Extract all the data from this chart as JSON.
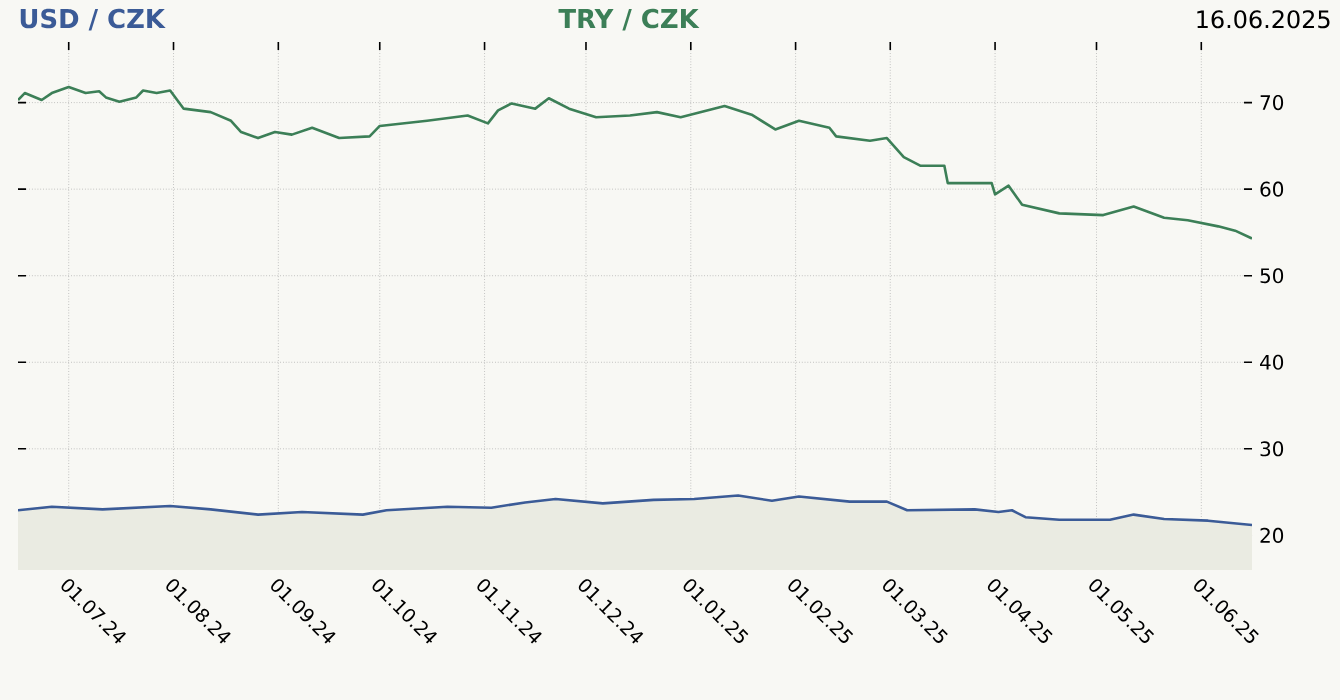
{
  "chart_data": {
    "type": "line",
    "xlim": [
      "2024-06-16",
      "2025-06-16"
    ],
    "xticks": [
      {
        "value": "2024-07-01",
        "label": "01.07.24"
      },
      {
        "value": "2024-08-01",
        "label": "01.08.24"
      },
      {
        "value": "2024-09-01",
        "label": "01.09.24"
      },
      {
        "value": "2024-10-01",
        "label": "01.10.24"
      },
      {
        "value": "2024-11-01",
        "label": "01.11.24"
      },
      {
        "value": "2024-12-01",
        "label": "01.12.24"
      },
      {
        "value": "2025-01-01",
        "label": "01.01.25"
      },
      {
        "value": "2025-02-01",
        "label": "01.02.25"
      },
      {
        "value": "2025-03-01",
        "label": "01.03.25"
      },
      {
        "value": "2025-04-01",
        "label": "01.04.25"
      },
      {
        "value": "2025-05-01",
        "label": "01.05.25"
      },
      {
        "value": "2025-06-01",
        "label": "01.06.25"
      }
    ],
    "ylim": [
      16,
      77
    ],
    "yticks": [
      20,
      30,
      40,
      50,
      60,
      70
    ],
    "grid": true,
    "legend": "top",
    "annotations": [
      "16.06.2025"
    ],
    "series": [
      {
        "name": "USD / CZK",
        "type": "area",
        "color": "#3b5b97",
        "x": [
          "2024-06-16",
          "2024-06-26",
          "2024-07-11",
          "2024-07-31",
          "2024-08-12",
          "2024-08-26",
          "2024-09-08",
          "2024-09-26",
          "2024-10-03",
          "2024-10-21",
          "2024-11-03",
          "2024-11-13",
          "2024-11-22",
          "2024-12-06",
          "2024-12-21",
          "2025-01-02",
          "2025-01-15",
          "2025-01-25",
          "2025-02-02",
          "2025-02-17",
          "2025-02-28",
          "2025-03-06",
          "2025-03-26",
          "2025-04-02",
          "2025-04-06",
          "2025-04-10",
          "2025-04-20",
          "2025-05-05",
          "2025-05-12",
          "2025-05-21",
          "2025-06-03",
          "2025-06-16"
        ],
        "values": [
          22.9,
          23.3,
          23.0,
          23.4,
          23.0,
          22.4,
          22.7,
          22.4,
          22.9,
          23.3,
          23.2,
          23.8,
          24.2,
          23.7,
          24.1,
          24.2,
          24.6,
          24.0,
          24.5,
          23.9,
          23.9,
          22.9,
          23.0,
          22.7,
          22.9,
          22.1,
          21.8,
          21.8,
          22.4,
          21.9,
          21.7,
          21.2
        ]
      },
      {
        "name": "TRY / CZK",
        "color": "#3c7f57",
        "x": [
          "2024-06-16",
          "2024-06-18",
          "2024-06-23",
          "2024-06-26",
          "2024-07-01",
          "2024-07-06",
          "2024-07-10",
          "2024-07-12",
          "2024-07-16",
          "2024-07-21",
          "2024-07-23",
          "2024-07-27",
          "2024-07-31",
          "2024-08-04",
          "2024-08-12",
          "2024-08-18",
          "2024-08-21",
          "2024-08-26",
          "2024-08-31",
          "2024-09-05",
          "2024-09-11",
          "2024-09-19",
          "2024-09-28",
          "2024-10-01",
          "2024-10-15",
          "2024-10-27",
          "2024-11-02",
          "2024-11-05",
          "2024-11-09",
          "2024-11-16",
          "2024-11-20",
          "2024-11-26",
          "2024-12-04",
          "2024-12-14",
          "2024-12-22",
          "2024-12-29",
          "2025-01-11",
          "2025-01-19",
          "2025-01-26",
          "2025-02-02",
          "2025-02-11",
          "2025-02-13",
          "2025-02-23",
          "2025-02-28",
          "2025-03-05",
          "2025-03-10",
          "2025-03-17",
          "2025-03-18",
          "2025-03-26",
          "2025-03-31",
          "2025-04-01",
          "2025-04-05",
          "2025-04-09",
          "2025-04-20",
          "2025-05-03",
          "2025-05-12",
          "2025-05-21",
          "2025-05-28",
          "2025-06-06",
          "2025-06-11",
          "2025-06-16"
        ],
        "values": [
          70.3,
          71.1,
          70.3,
          71.1,
          71.8,
          71.1,
          71.3,
          70.6,
          70.1,
          70.6,
          71.4,
          71.1,
          71.4,
          69.3,
          68.9,
          67.9,
          66.6,
          65.9,
          66.6,
          66.3,
          67.1,
          65.9,
          66.1,
          67.3,
          67.9,
          68.5,
          67.6,
          69.1,
          69.9,
          69.3,
          70.5,
          69.3,
          68.3,
          68.5,
          68.9,
          68.3,
          69.6,
          68.6,
          66.9,
          67.9,
          67.1,
          66.1,
          65.6,
          65.9,
          63.7,
          62.7,
          62.7,
          60.7,
          60.7,
          60.7,
          59.4,
          60.4,
          58.2,
          57.2,
          57.0,
          58.0,
          56.7,
          56.4,
          55.7,
          55.2,
          54.3
        ]
      }
    ]
  }
}
